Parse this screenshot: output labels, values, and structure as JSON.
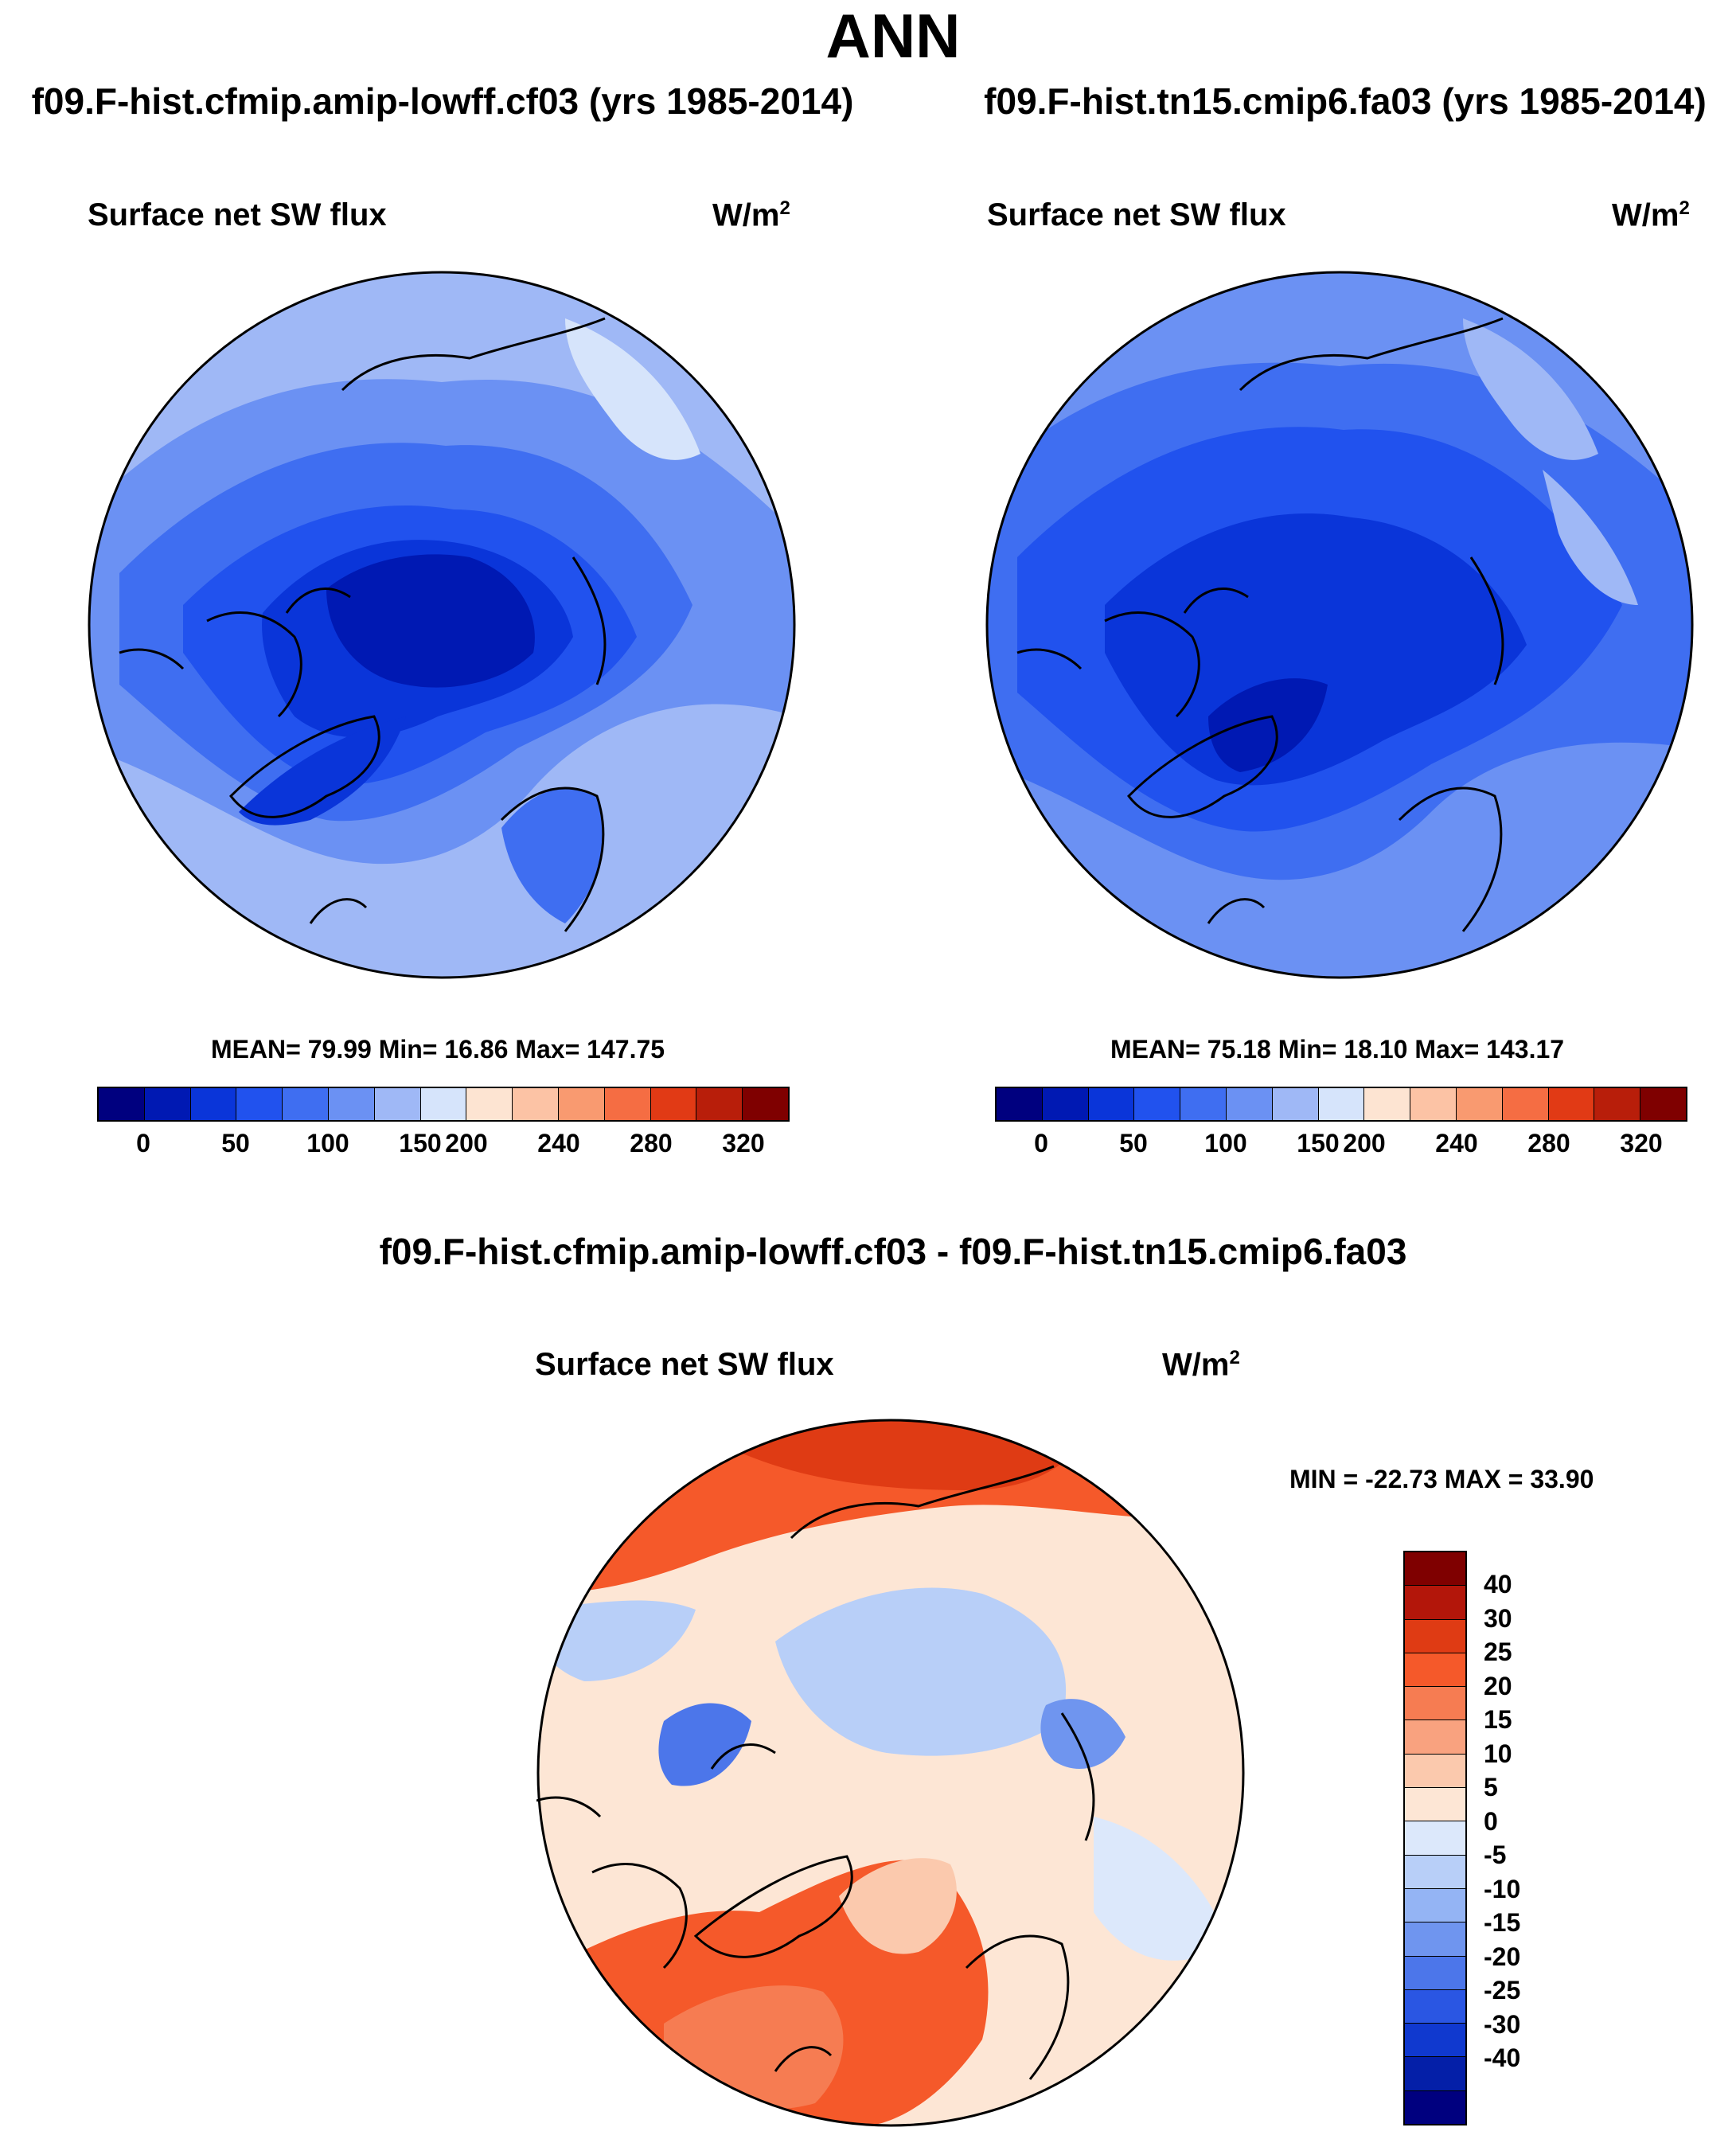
{
  "title": "ANN",
  "panels": [
    {
      "case": "f09.F-hist.cfmip.amip-lowff.cf03 (yrs 1985-2014)",
      "variable": "Surface net SW flux",
      "units": "W/m",
      "units_exp": "2",
      "stats": "MEAN=  79.99  Min=  16.86  Max= 147.75"
    },
    {
      "case": "f09.F-hist.tn15.cmip6.fa03 (yrs 1985-2014)",
      "variable": "Surface net SW flux",
      "units": "W/m",
      "units_exp": "2",
      "stats": "MEAN=  75.18  Min=  18.10  Max= 143.17"
    }
  ],
  "abs_colorbar": {
    "colors": [
      "#00007f",
      "#0019b3",
      "#0a35d9",
      "#2152ee",
      "#3f6ef1",
      "#6b91f3",
      "#9fb8f6",
      "#d6e4fb",
      "#fde4d2",
      "#fcc3a5",
      "#f99a70",
      "#f56d43",
      "#e13a15",
      "#b81e0a",
      "#7f0000"
    ],
    "labels": [
      "0",
      "50",
      "100",
      "150",
      "200",
      "240",
      "280",
      "320"
    ]
  },
  "diff_panel": {
    "case": "f09.F-hist.cfmip.amip-lowff.cf03 - f09.F-hist.tn15.cmip6.fa03",
    "variable": "Surface net SW flux",
    "units": "W/m",
    "units_exp": "2",
    "stats": "MIN = -22.73 MAX =  33.90"
  },
  "diff_colorbar": {
    "colors": [
      "#7f0000",
      "#b3160a",
      "#df3b14",
      "#f5592a",
      "#f67c52",
      "#f9a27f",
      "#fbc9ad",
      "#fde6d5",
      "#dce8fb",
      "#b8cff8",
      "#94b4f4",
      "#6f95ef",
      "#4c76ea",
      "#2a56e3",
      "#1039cf",
      "#041fa8",
      "#00007f"
    ],
    "labels": [
      "40",
      "30",
      "25",
      "20",
      "15",
      "10",
      "5",
      "0",
      "-5",
      "-10",
      "-15",
      "-20",
      "-25",
      "-30",
      "-40"
    ]
  }
}
